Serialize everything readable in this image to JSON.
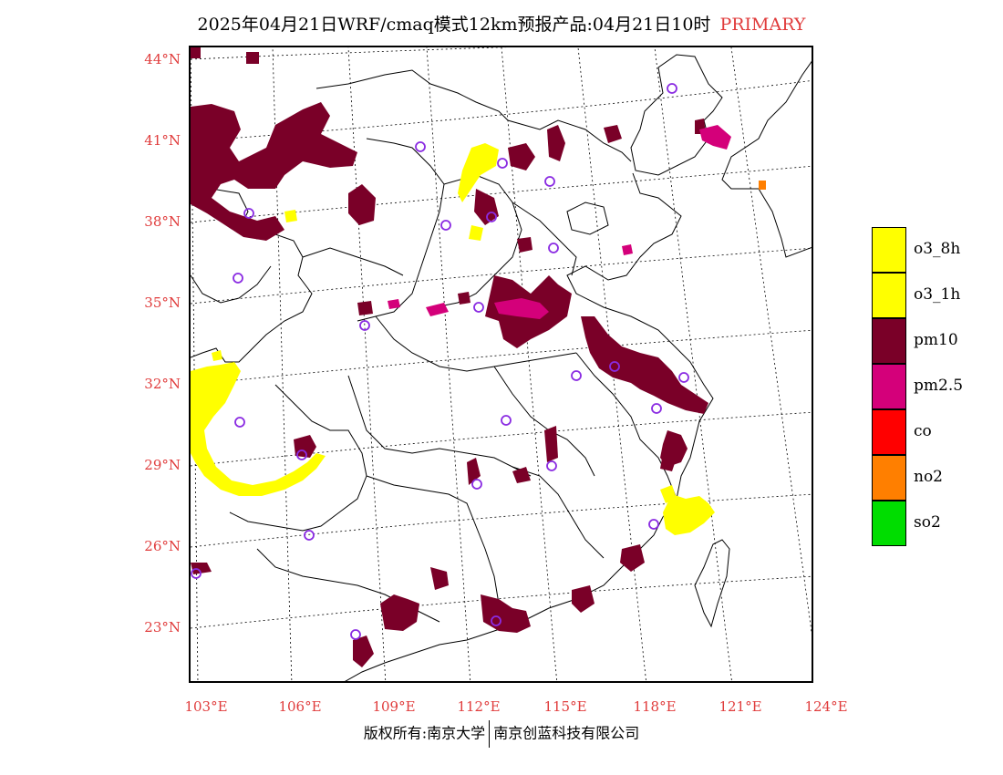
{
  "title": {
    "main": "2025年04月21日WRF/cmaq模式12km预报产品:04月21日10时",
    "mode": "PRIMARY"
  },
  "map": {
    "lat_labels": [
      "44°N",
      "41°N",
      "38°N",
      "35°N",
      "32°N",
      "29°N",
      "26°N",
      "23°N"
    ],
    "lon_labels": [
      "103°E",
      "106°E",
      "109°E",
      "112°E",
      "115°E",
      "118°E",
      "121°E",
      "124°E"
    ]
  },
  "legend": {
    "items": [
      {
        "label": "o3_8h",
        "color": "#ffff00"
      },
      {
        "label": "o3_1h",
        "color": "#ffff00"
      },
      {
        "label": "pm10",
        "color": "#7a0028"
      },
      {
        "label": "pm2.5",
        "color": "#d4007a"
      },
      {
        "label": "co",
        "color": "#ff0000"
      },
      {
        "label": "no2",
        "color": "#ff7f00"
      },
      {
        "label": "so2",
        "color": "#00dd00"
      }
    ]
  },
  "footer": {
    "copyright": "版权所有:南京大学",
    "company": "南京创蓝科技有限公司"
  }
}
